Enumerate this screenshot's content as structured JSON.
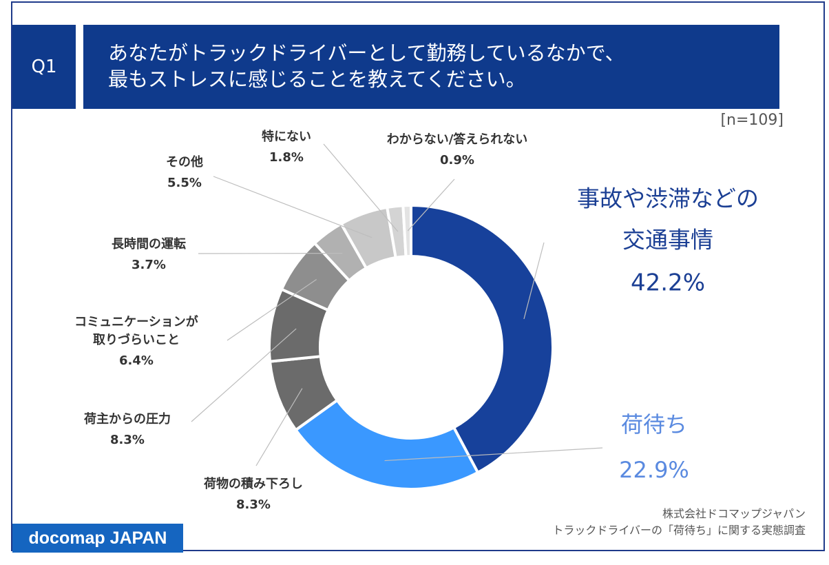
{
  "header": {
    "question_label": "Q1",
    "question_line1": "あなたがトラックドライバーとして勤務しているなかで、",
    "question_line2": "最もストレスに感じることを教えてください。",
    "sample_size": "[n=109]"
  },
  "footer": {
    "logo": "docomap JAPAN",
    "source_line1": "株式会社ドコマップジャパン",
    "source_line2": "トラックドライバーの「荷待ち」に関する実態調査"
  },
  "colors": {
    "brand_navy": "#0f3a8c",
    "slice_top": "#17419b",
    "slice_second": "#3a98ff",
    "label_blue": "#1b3f94",
    "label_light_blue": "#5a8ae0",
    "gray_dark": "#6b6b6b",
    "gray_mid": "#8e8e8e",
    "gray_light": "#b1b1b1",
    "gray_pale": "#c8c8c8",
    "gray_faint": "#d4d4d4",
    "gray_white": "#e3e3e3"
  },
  "chart_data": {
    "type": "pie",
    "donut": true,
    "title": "あなたがトラックドライバーとして勤務しているなかで、最もストレスに感じることを教えてください。",
    "n": 109,
    "unit": "%",
    "slices": [
      {
        "key": "s1",
        "lines": [
          "事故や渋滞などの",
          "交通事情"
        ],
        "value": 42.2,
        "label": "42.2%",
        "color": "#17419b"
      },
      {
        "key": "s2",
        "lines": [
          "荷待ち"
        ],
        "value": 22.9,
        "label": "22.9%",
        "color": "#3a98ff"
      },
      {
        "key": "s3",
        "lines": [
          "荷物の積み下ろし"
        ],
        "value": 8.3,
        "label": "8.3%",
        "color": "#6b6b6b"
      },
      {
        "key": "s4",
        "lines": [
          "荷主からの圧力"
        ],
        "value": 8.3,
        "label": "8.3%",
        "color": "#6b6b6b"
      },
      {
        "key": "s5",
        "lines": [
          "コミュニケーションが",
          "取りづらいこと"
        ],
        "value": 6.4,
        "label": "6.4%",
        "color": "#8e8e8e"
      },
      {
        "key": "s6",
        "lines": [
          "長時間の運転"
        ],
        "value": 3.7,
        "label": "3.7%",
        "color": "#b1b1b1"
      },
      {
        "key": "s7",
        "lines": [
          "その他"
        ],
        "value": 5.5,
        "label": "5.5%",
        "color": "#c8c8c8"
      },
      {
        "key": "s8",
        "lines": [
          "特にない"
        ],
        "value": 1.8,
        "label": "1.8%",
        "color": "#d4d4d4"
      },
      {
        "key": "s9",
        "lines": [
          "わからない/答えられない"
        ],
        "value": 0.9,
        "label": "0.9%",
        "color": "#e3e3e3"
      }
    ]
  }
}
